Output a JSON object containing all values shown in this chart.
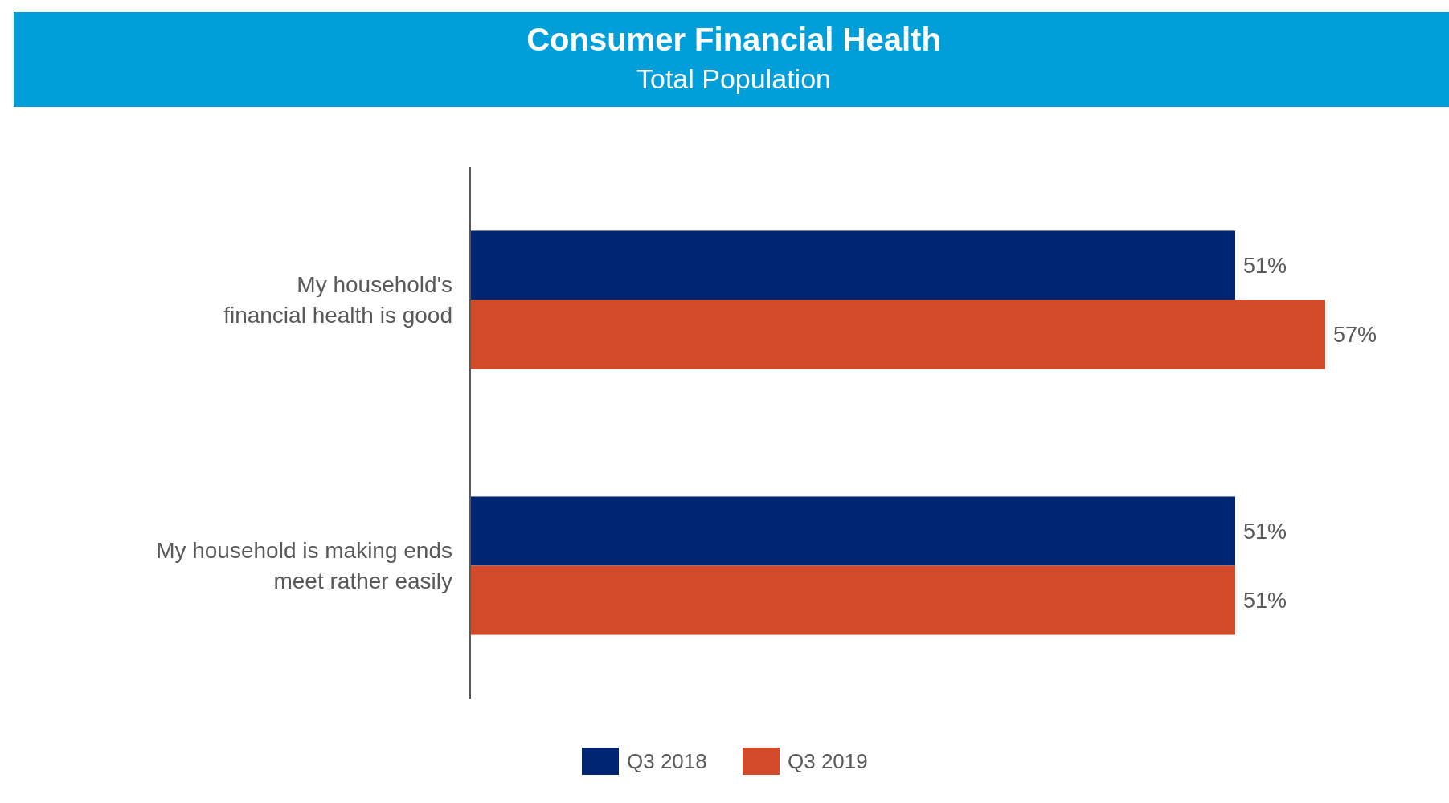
{
  "chart_data": {
    "type": "bar",
    "orientation": "horizontal",
    "title": "Consumer Financial Health",
    "subtitle": "Total Population",
    "categories": [
      "My household's\nfinancial health is good",
      "My household is making ends\nmeet rather easily"
    ],
    "series": [
      {
        "name": "Q3 2018",
        "color": "#002673",
        "values": [
          51,
          51
        ],
        "value_labels": [
          "51%",
          "51%"
        ]
      },
      {
        "name": "Q3 2019",
        "color": "#d24a29",
        "values": [
          57,
          51
        ],
        "value_labels": [
          "57%",
          "51%"
        ]
      }
    ],
    "legend": "bottom"
  }
}
